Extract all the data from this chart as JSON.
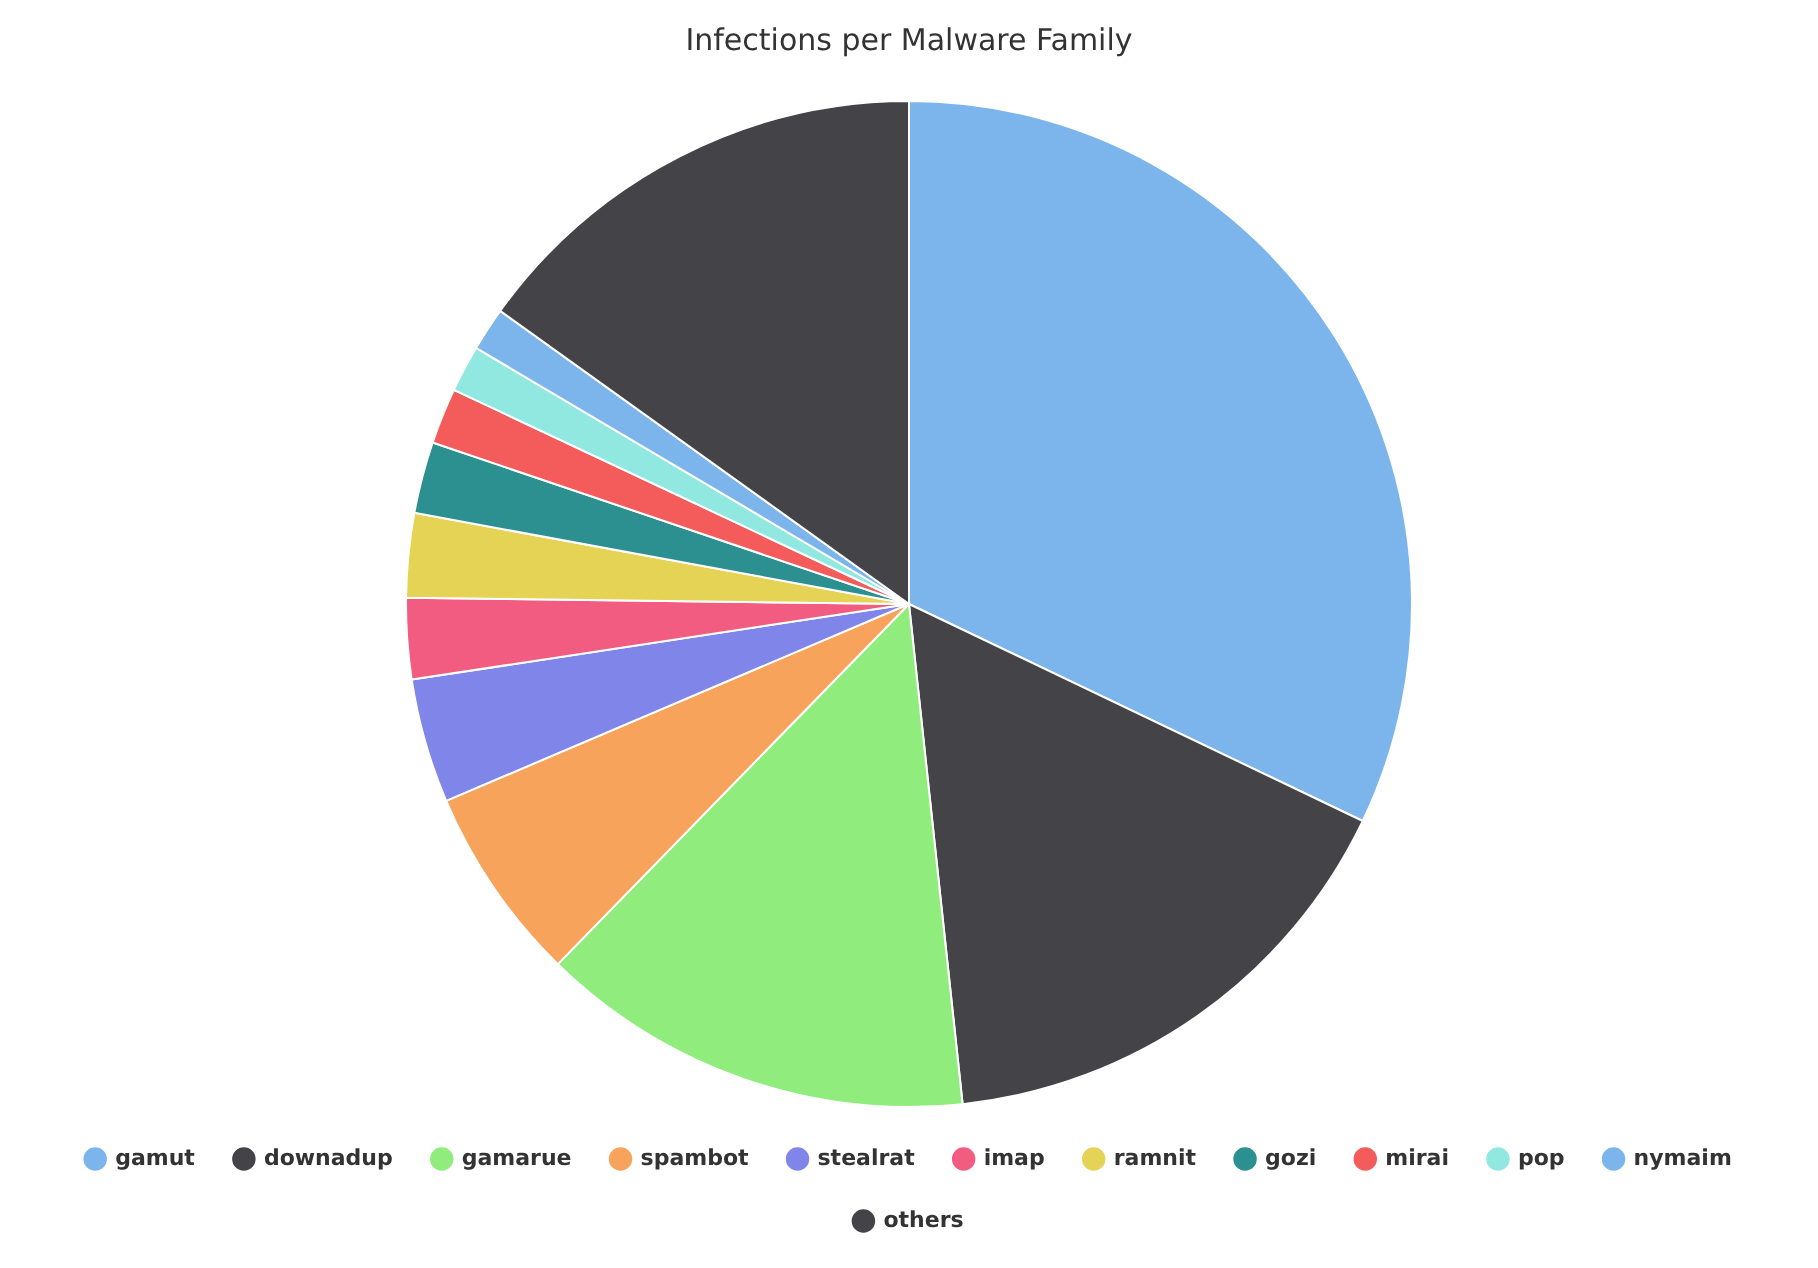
{
  "chart_data": {
    "type": "pie",
    "title": "Infections per Malware Family",
    "categories": [
      "gamut",
      "downadup",
      "gamarue",
      "spambot",
      "stealrat",
      "imap",
      "ramnit",
      "gozi",
      "mirai",
      "pop",
      "nymaim",
      "others"
    ],
    "values": [
      32.1,
      16.2,
      14.0,
      6.3,
      4.0,
      2.6,
      2.7,
      2.3,
      1.8,
      1.5,
      1.4,
      15.1
    ],
    "colors": [
      "#7cb5ec",
      "#434348",
      "#90ed7d",
      "#f7a35c",
      "#8085e9",
      "#f15c80",
      "#e4d354",
      "#2b908f",
      "#f45b5b",
      "#91e8e1",
      "#7cb5ec",
      "#434348"
    ],
    "legend": "bottom"
  }
}
